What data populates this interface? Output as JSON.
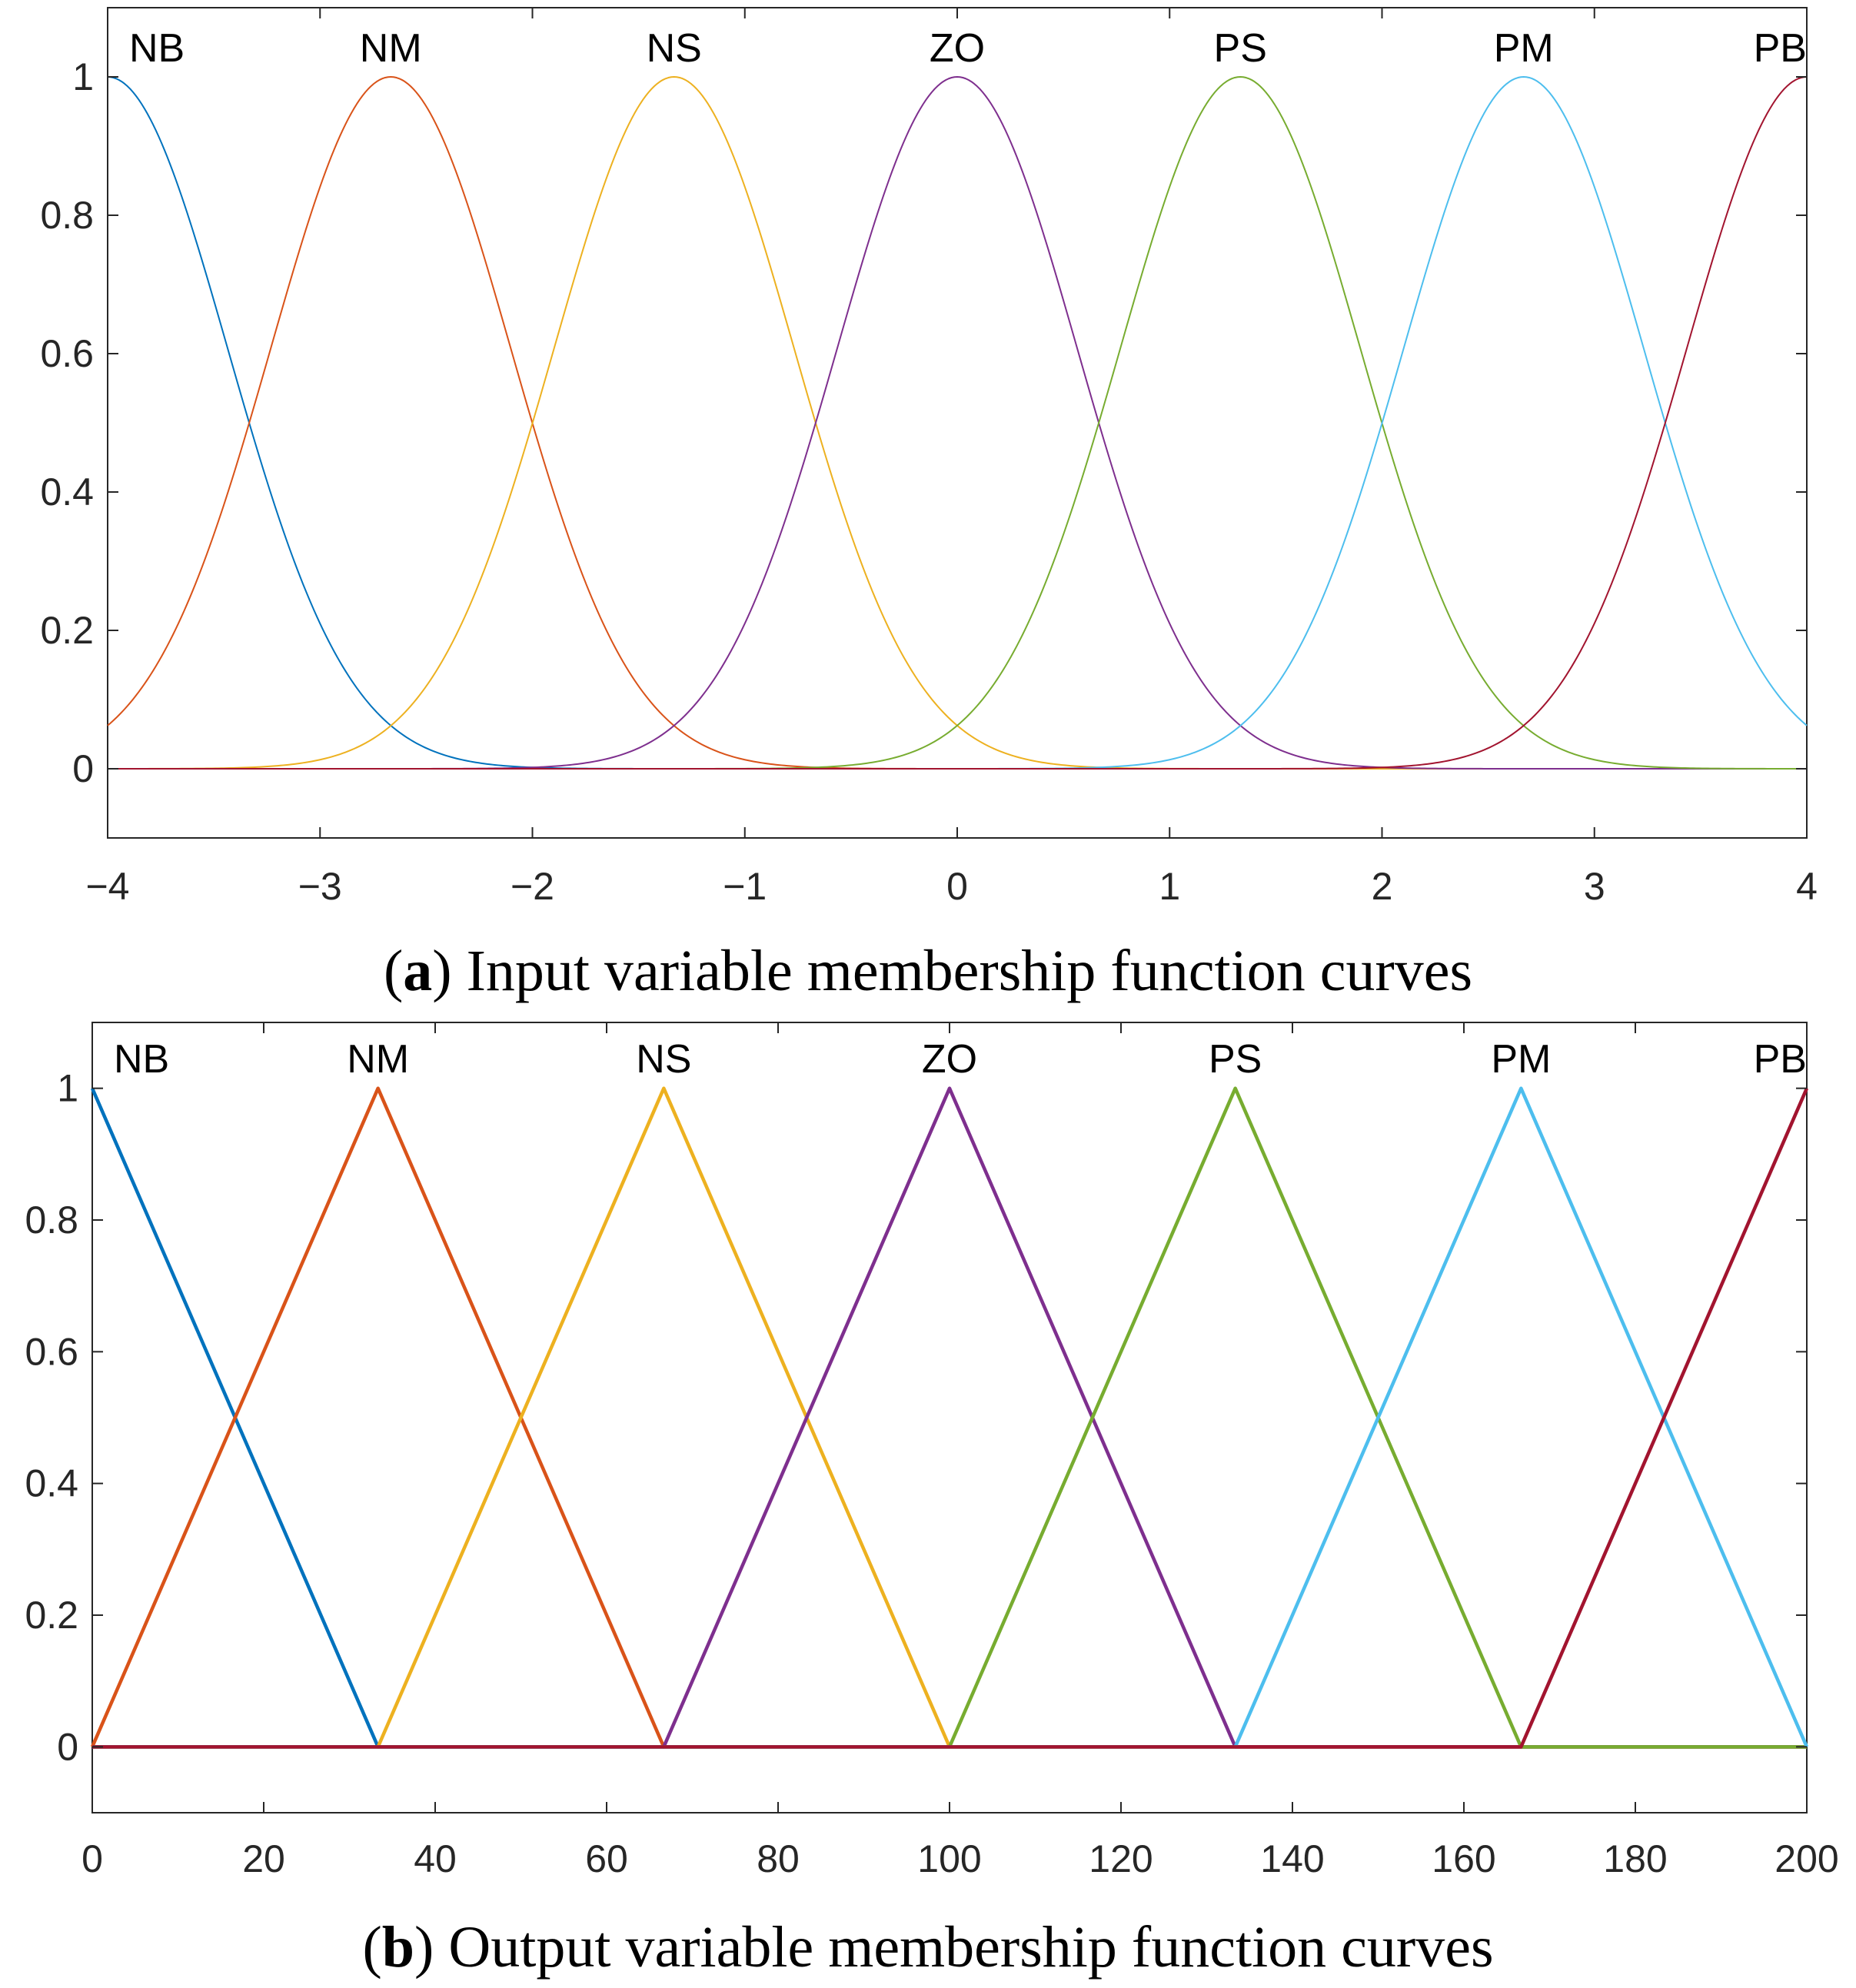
{
  "chart_data": [
    {
      "type": "line",
      "id": "a",
      "shape": "gaussian",
      "caption_letter": "a",
      "caption_text": "Input variable membership function curves",
      "xlim": [
        -4,
        4
      ],
      "ylim": [
        -0.1,
        1.1
      ],
      "xticks": [
        -4,
        -3,
        -2,
        -1,
        0,
        1,
        2,
        3,
        4
      ],
      "xtick_labels": [
        "−4",
        "−3",
        "−2",
        "−1",
        "0",
        "1",
        "2",
        "3",
        "4"
      ],
      "yticks": [
        0,
        0.2,
        0.4,
        0.6,
        0.8,
        1
      ],
      "ytick_labels": [
        "0",
        "0.2",
        "0.4",
        "0.6",
        "0.8",
        "1"
      ],
      "sigma": 0.566,
      "series": [
        {
          "name": "NB",
          "center": -4.0,
          "color": "#0072BD"
        },
        {
          "name": "NM",
          "center": -2.667,
          "color": "#D95319"
        },
        {
          "name": "NS",
          "center": -1.333,
          "color": "#EDB120"
        },
        {
          "name": "ZO",
          "center": 0.0,
          "color": "#7E2F8E"
        },
        {
          "name": "PS",
          "center": 1.333,
          "color": "#77AC30"
        },
        {
          "name": "PM",
          "center": 2.667,
          "color": "#4DBEEE"
        },
        {
          "name": "PB",
          "center": 4.0,
          "color": "#A2142F"
        }
      ]
    },
    {
      "type": "line",
      "id": "b",
      "shape": "triangular",
      "caption_letter": "b",
      "caption_text": "Output variable membership function curves",
      "xlim": [
        0,
        200
      ],
      "ylim": [
        -0.1,
        1.1
      ],
      "xticks": [
        0,
        20,
        40,
        60,
        80,
        100,
        120,
        140,
        160,
        180,
        200
      ],
      "xtick_labels": [
        "0",
        "20",
        "40",
        "60",
        "80",
        "100",
        "120",
        "140",
        "160",
        "180",
        "200"
      ],
      "yticks": [
        0,
        0.2,
        0.4,
        0.6,
        0.8,
        1
      ],
      "ytick_labels": [
        "0",
        "0.2",
        "0.4",
        "0.6",
        "0.8",
        "1"
      ],
      "half_width": 33.333,
      "series": [
        {
          "name": "NB",
          "center": 0,
          "color": "#0072BD"
        },
        {
          "name": "NM",
          "center": 33.333,
          "color": "#D95319"
        },
        {
          "name": "NS",
          "center": 66.667,
          "color": "#EDB120"
        },
        {
          "name": "ZO",
          "center": 100,
          "color": "#7E2F8E"
        },
        {
          "name": "PS",
          "center": 133.333,
          "color": "#77AC30"
        },
        {
          "name": "PM",
          "center": 166.667,
          "color": "#4DBEEE"
        },
        {
          "name": "PB",
          "center": 200,
          "color": "#A2142F"
        }
      ]
    }
  ]
}
